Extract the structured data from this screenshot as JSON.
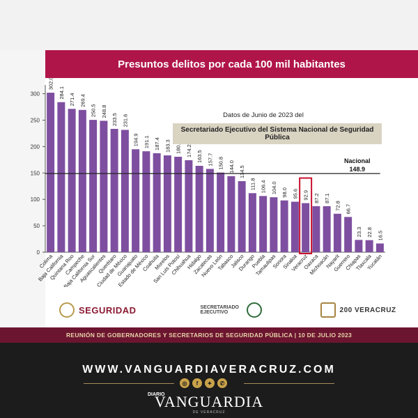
{
  "slide": {
    "title": "Presuntos delitos por cada 100 mil habitantes",
    "source_line1": "Datos  de Junio de 2023 del",
    "source_line2": "Secretariado Ejecutivo del Sistema Nacional de Seguridad Pública",
    "national_label": "Nacional",
    "national_value": "148.9",
    "footer": "REUNIÓN DE GOBERNADORES Y SECRETARIOS DE SEGURIDAD PÚBLICA | 10 DE JULIO 2023",
    "logos": {
      "seguridad": "SEGURIDAD",
      "secretariado": "SECRETARIADO EJECUTIVO",
      "veracruz": "200 VERACRUZ"
    }
  },
  "branding": {
    "url": "WWW.VANGUARDIAVERACRUZ.COM",
    "diario": "DIARIO",
    "name": "VANGUARDIA",
    "sub": "DE VERACRUZ",
    "social_icons": [
      "instagram-icon",
      "facebook-icon",
      "twitter-icon",
      "whatsapp-icon"
    ]
  },
  "colors": {
    "bar": "#7e4fa0",
    "highlight": "#c8102e",
    "title_bar": "#b0154a",
    "footer_bar": "#6c1530"
  },
  "chart_data": {
    "type": "bar",
    "title": "Presuntos delitos por cada 100 mil habitantes",
    "categories": [
      "Colima",
      "Baja California",
      "Quintana Roo",
      "Campeche",
      "Baja California Sur",
      "Aguascalientes",
      "Querétaro",
      "Ciudad de México",
      "Guanajuato",
      "Estado de México",
      "Coahuila",
      "Morelos",
      "San Luis Potosí",
      "Chihuahua",
      "Hidalgo",
      "Zacatecas",
      "Nuevo León",
      "Tabasco",
      "Jalisco",
      "Durango",
      "Puebla",
      "Tamaulipas",
      "Sonora",
      "Sinaloa",
      "Veracruz",
      "Oaxaca",
      "Michoacán",
      "Nayarit",
      "Guerrero",
      "Chiapas",
      "Tlaxcala",
      "Yucatán"
    ],
    "values": [
      302.0,
      284.1,
      271.4,
      269.4,
      250.5,
      248.8,
      233.5,
      231.6,
      194.9,
      191.1,
      187.4,
      183.3,
      180.7,
      174.2,
      163.5,
      157.7,
      150.8,
      144.0,
      134.5,
      111.8,
      106.4,
      104.0,
      98.0,
      95.6,
      92.9,
      87.2,
      87.1,
      72.8,
      66.7,
      23.3,
      22.8,
      16.5
    ],
    "value_labels": [
      "302.0",
      "284.1",
      "271.4",
      "269.4",
      "250.5",
      "248.8",
      "233.5",
      "231.6",
      "194.9",
      "191.1",
      "187.4",
      "183.3",
      "180.7",
      "174.2",
      "163.5",
      "157.7",
      "150.8",
      "144.0",
      "134.5",
      "111.8",
      "106.4",
      "104.0",
      "98.0",
      "95.6",
      "92.9",
      "87.2",
      "87.1",
      "72.8",
      "66.7",
      "23.3",
      "22.8",
      "16.5"
    ],
    "highlight": "Veracruz",
    "reference_line": {
      "label": "Nacional",
      "value": 148.9
    },
    "y_ticks": [
      0,
      50,
      100,
      150,
      200,
      250,
      300
    ],
    "ylim": [
      0,
      310
    ],
    "grid": false,
    "legend": "none"
  }
}
